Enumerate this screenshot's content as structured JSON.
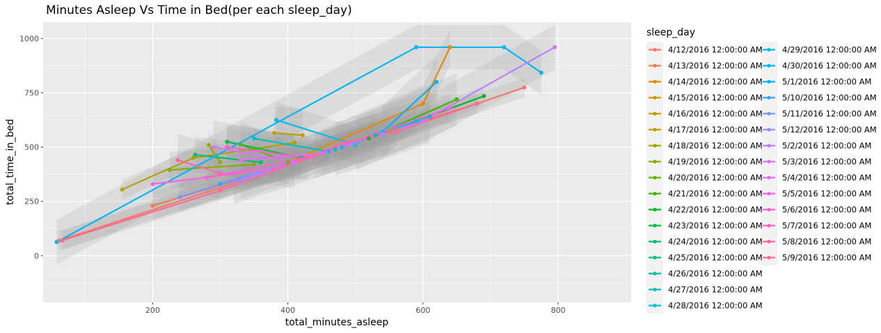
{
  "chart_data": {
    "type": "scatter",
    "title": "Minutes Asleep Vs Time in Bed(per each sleep_day)",
    "xlabel": "total_minutes_asleep",
    "ylabel": "total_time_in_bed",
    "xlim": [
      38,
      908
    ],
    "ylim": [
      -215,
      1075
    ],
    "x_ticks": [
      200,
      400,
      600,
      800
    ],
    "y_ticks": [
      0,
      250,
      500,
      750,
      1000
    ],
    "grid": true,
    "smoothing": "loess trend line with grey confidence band per series",
    "legend": {
      "title": "sleep_day",
      "placement": "right",
      "columns": 2
    },
    "series": [
      {
        "name": "4/12/2016 12:00:00 AM",
        "color": "#F8766D",
        "points": [
          [
            61,
            69
          ],
          [
            380,
            395
          ],
          [
            470,
            495
          ],
          [
            680,
            700
          ],
          [
            750,
            775
          ]
        ]
      },
      {
        "name": "4/13/2016 12:00:00 AM",
        "color": "#EF7F49",
        "points": [
          [
            200,
            230
          ],
          [
            420,
            440
          ],
          [
            560,
            580
          ]
        ]
      },
      {
        "name": "4/14/2016 12:00:00 AM",
        "color": "#E28B00",
        "points": [
          [
            640,
            960
          ],
          [
            600,
            700
          ],
          [
            400,
            430
          ]
        ]
      },
      {
        "name": "4/15/2016 12:00:00 AM",
        "color": "#D39200",
        "points": [
          [
            450,
            470
          ],
          [
            550,
            575
          ]
        ]
      },
      {
        "name": "4/16/2016 12:00:00 AM",
        "color": "#C49A00",
        "points": [
          [
            422,
            555
          ],
          [
            380,
            565
          ]
        ]
      },
      {
        "name": "4/17/2016 12:00:00 AM",
        "color": "#B2A100",
        "points": [
          [
            155,
            305
          ],
          [
            260,
            450
          ],
          [
            410,
            520
          ]
        ]
      },
      {
        "name": "4/18/2016 12:00:00 AM",
        "color": "#9EA700",
        "points": [
          [
            283,
            510
          ],
          [
            300,
            430
          ]
        ]
      },
      {
        "name": "4/19/2016 12:00:00 AM",
        "color": "#86AC00",
        "points": [
          [
            225,
            395
          ],
          [
            350,
            420
          ]
        ]
      },
      {
        "name": "4/20/2016 12:00:00 AM",
        "color": "#6BB100",
        "points": [
          [
            330,
            512
          ],
          [
            400,
            430
          ]
        ]
      },
      {
        "name": "4/21/2016 12:00:00 AM",
        "color": "#43B500",
        "points": [
          [
            500,
            515
          ],
          [
            650,
            720
          ]
        ]
      },
      {
        "name": "4/22/2016 12:00:00 AM",
        "color": "#00B81F",
        "points": [
          [
            690,
            735
          ],
          [
            520,
            540
          ]
        ]
      },
      {
        "name": "4/23/2016 12:00:00 AM",
        "color": "#00BB4E",
        "points": [
          [
            310,
            525
          ],
          [
            420,
            450
          ]
        ]
      },
      {
        "name": "4/24/2016 12:00:00 AM",
        "color": "#00BD6F",
        "points": [
          [
            263,
            465
          ],
          [
            360,
            430
          ]
        ]
      },
      {
        "name": "4/25/2016 12:00:00 AM",
        "color": "#00BF8C",
        "points": [
          [
            530,
            555
          ],
          [
            440,
            460
          ]
        ]
      },
      {
        "name": "4/26/2016 12:00:00 AM",
        "color": "#00C0A6",
        "points": [
          [
            470,
            490
          ],
          [
            610,
            640
          ]
        ]
      },
      {
        "name": "4/27/2016 12:00:00 AM",
        "color": "#00C0BE",
        "points": [
          [
            350,
            540
          ],
          [
            460,
            480
          ]
        ]
      },
      {
        "name": "4/28/2016 12:00:00 AM",
        "color": "#00BED4",
        "points": [
          [
            590,
            620
          ],
          [
            480,
            500
          ]
        ]
      },
      {
        "name": "4/29/2016 12:00:00 AM",
        "color": "#00BBE7",
        "points": [
          [
            383,
            625
          ],
          [
            500,
            510
          ]
        ]
      },
      {
        "name": "4/30/2016 12:00:00 AM",
        "color": "#00B5F7",
        "points": [
          [
            58,
            63
          ],
          [
            590,
            960
          ],
          [
            720,
            960
          ],
          [
            775,
            843
          ]
        ]
      },
      {
        "name": "5/1/2016 12:00:00 AM",
        "color": "#00AEFF",
        "points": [
          [
            540,
            570
          ],
          [
            620,
            800
          ]
        ]
      },
      {
        "name": "5/10/2016 12:00:00 AM",
        "color": "#35A2FF",
        "points": [
          [
            300,
            330
          ],
          [
            460,
            480
          ]
        ]
      },
      {
        "name": "5/11/2016 12:00:00 AM",
        "color": "#7B95FF",
        "points": [
          [
            240,
            270
          ],
          [
            500,
            520
          ]
        ]
      },
      {
        "name": "5/12/2016 12:00:00 AM",
        "color": "#A58AFF",
        "points": [
          [
            330,
            345
          ],
          [
            540,
            560
          ]
        ]
      },
      {
        "name": "5/2/2016 12:00:00 AM",
        "color": "#C07EFF",
        "points": [
          [
            795,
            960
          ],
          [
            600,
            620
          ],
          [
            320,
            340
          ]
        ]
      },
      {
        "name": "5/3/2016 12:00:00 AM",
        "color": "#D575FE",
        "points": [
          [
            290,
            500
          ],
          [
            410,
            430
          ]
        ]
      },
      {
        "name": "5/4/2016 12:00:00 AM",
        "color": "#E76BF3",
        "points": [
          [
            330,
            440
          ],
          [
            450,
            470
          ]
        ]
      },
      {
        "name": "5/5/2016 12:00:00 AM",
        "color": "#F464E5",
        "points": [
          [
            200,
            330
          ],
          [
            380,
            400
          ],
          [
            640,
            680
          ]
        ]
      },
      {
        "name": "5/6/2016 12:00:00 AM",
        "color": "#FC61D3",
        "points": [
          [
            280,
            360
          ],
          [
            420,
            445
          ]
        ]
      },
      {
        "name": "5/7/2016 12:00:00 AM",
        "color": "#FF62BF",
        "points": [
          [
            310,
            500
          ],
          [
            430,
            450
          ]
        ]
      },
      {
        "name": "5/8/2016 12:00:00 AM",
        "color": "#FF66A8",
        "points": [
          [
            237,
            440
          ],
          [
            300,
            380
          ]
        ]
      },
      {
        "name": "5/9/2016 12:00:00 AM",
        "color": "#FF6C91",
        "points": [
          [
            66,
            70
          ],
          [
            300,
            300
          ],
          [
            440,
            460
          ],
          [
            480,
            520
          ],
          [
            560,
            570
          ],
          [
            680,
            700
          ]
        ]
      }
    ]
  }
}
